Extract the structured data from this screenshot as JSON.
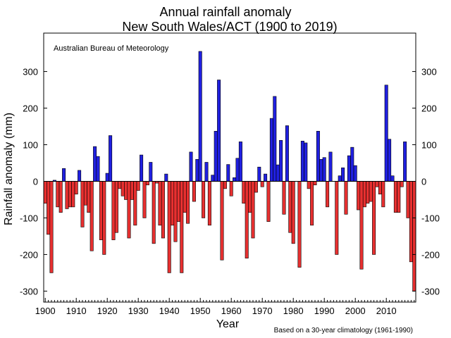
{
  "chart_data": {
    "type": "bar",
    "title": "Annual rainfall anomaly",
    "subtitle": "New South Wales/ACT (1900 to 2019)",
    "xlabel": "Year",
    "ylabel": "Rainfall anomaly (mm)",
    "source_label": "Australian Bureau of Meteorology",
    "footnote": "Based on a 30-year climatology (1961-1990)",
    "xlim": [
      1900,
      2019
    ],
    "ylim": [
      -330,
      405
    ],
    "x_ticks": [
      1900,
      1910,
      1920,
      1930,
      1940,
      1950,
      1960,
      1970,
      1980,
      1990,
      2000,
      2010
    ],
    "y_ticks": [
      -300,
      -200,
      -100,
      0,
      100,
      200,
      300
    ],
    "grid": false,
    "positive_color": "#2020e0",
    "negative_color": "#e83030",
    "x": [
      1900,
      1901,
      1902,
      1903,
      1904,
      1905,
      1906,
      1907,
      1908,
      1909,
      1910,
      1911,
      1912,
      1913,
      1914,
      1915,
      1916,
      1917,
      1918,
      1919,
      1920,
      1921,
      1922,
      1923,
      1924,
      1925,
      1926,
      1927,
      1928,
      1929,
      1930,
      1931,
      1932,
      1933,
      1934,
      1935,
      1936,
      1937,
      1938,
      1939,
      1940,
      1941,
      1942,
      1943,
      1944,
      1945,
      1946,
      1947,
      1948,
      1949,
      1950,
      1951,
      1952,
      1953,
      1954,
      1955,
      1956,
      1957,
      1958,
      1959,
      1960,
      1961,
      1962,
      1963,
      1964,
      1965,
      1966,
      1967,
      1968,
      1969,
      1970,
      1971,
      1972,
      1973,
      1974,
      1975,
      1976,
      1977,
      1978,
      1979,
      1980,
      1981,
      1982,
      1983,
      1984,
      1985,
      1986,
      1987,
      1988,
      1989,
      1990,
      1991,
      1992,
      1993,
      1994,
      1995,
      1996,
      1997,
      1998,
      1999,
      2000,
      2001,
      2002,
      2003,
      2004,
      2005,
      2006,
      2007,
      2008,
      2009,
      2010,
      2011,
      2012,
      2013,
      2014,
      2015,
      2016,
      2017,
      2018,
      2019
    ],
    "values": [
      -60,
      -145,
      -250,
      3,
      -70,
      -85,
      35,
      -75,
      -70,
      -70,
      -35,
      30,
      -125,
      -65,
      -85,
      -190,
      95,
      68,
      -160,
      -200,
      22,
      125,
      -160,
      -140,
      -20,
      -40,
      -50,
      -155,
      -50,
      -120,
      -25,
      72,
      -100,
      -10,
      52,
      -170,
      -5,
      -120,
      -155,
      20,
      -250,
      -120,
      -165,
      -110,
      -250,
      -85,
      -115,
      80,
      -55,
      60,
      355,
      -100,
      52,
      -120,
      17,
      137,
      277,
      -215,
      -20,
      46,
      -40,
      10,
      63,
      108,
      -60,
      -210,
      -85,
      -155,
      -30,
      39,
      -15,
      20,
      -110,
      172,
      232,
      45,
      112,
      -90,
      152,
      -140,
      -170,
      0,
      -235,
      110,
      105,
      -20,
      -120,
      -10,
      137,
      60,
      65,
      -70,
      80,
      0,
      -200,
      15,
      37,
      -90,
      70,
      93,
      43,
      -78,
      -240,
      -70,
      -60,
      -55,
      -200,
      -15,
      -35,
      -70,
      263,
      115,
      15,
      -85,
      -85,
      -15,
      108,
      -100,
      -220,
      -300
    ]
  }
}
